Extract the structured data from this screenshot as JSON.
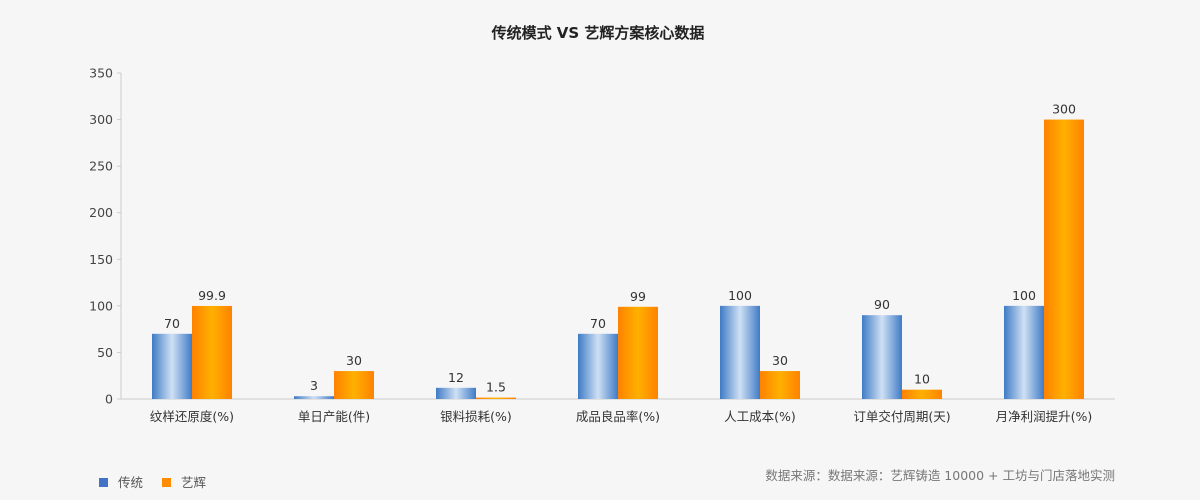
{
  "chart_data": {
    "type": "bar",
    "title": "传统模式 VS 艺辉方案核心数据",
    "categories": [
      "纹样还原度(%)",
      "单日产能(件)",
      "银料损耗(%)",
      "成品良品率(%)",
      "人工成本(%)",
      "订单交付周期(天)",
      "月净利润提升(%)"
    ],
    "series": [
      {
        "name": "传统",
        "values": [
          70,
          3,
          12,
          70,
          100,
          90,
          100
        ],
        "value_labels": [
          "70",
          "3",
          "12",
          "70",
          "100",
          "90",
          "100"
        ],
        "color": "#5b8fcf"
      },
      {
        "name": "艺辉",
        "values": [
          99.9,
          30,
          1.5,
          99,
          30,
          10,
          300
        ],
        "value_labels": [
          "99.9",
          "30",
          "1.5",
          "99",
          "30",
          "10",
          "300"
        ],
        "color": "#ff8c00"
      }
    ],
    "ylim": [
      0,
      350
    ],
    "yticks": [
      "0",
      "50",
      "100",
      "150",
      "200",
      "250",
      "300",
      "350"
    ],
    "xlabel": "",
    "ylabel": "",
    "grid": false,
    "legend_position": "bottom-left",
    "source": "数据来源：数据来源：艺辉铸造 10000 + 工坊与门店落地实测"
  }
}
